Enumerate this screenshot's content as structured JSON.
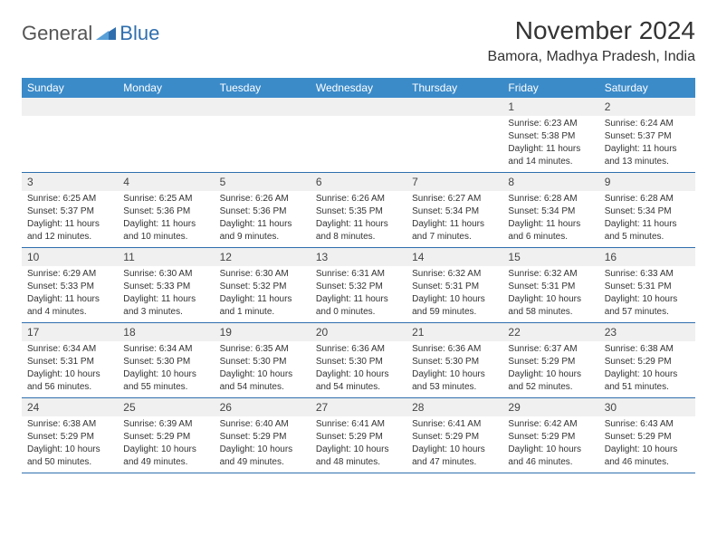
{
  "logo": {
    "part1": "General",
    "part2": "Blue"
  },
  "title": "November 2024",
  "location": "Bamora, Madhya Pradesh, India",
  "colors": {
    "header_bg": "#3b8bc9",
    "header_text": "#ffffff",
    "daynum_bg": "#f0f0f0",
    "row_divider": "#2f6fae",
    "logo_gray": "#555555",
    "logo_blue": "#2f6fae"
  },
  "typography": {
    "title_fontsize": 28,
    "location_fontsize": 16,
    "dayheader_fontsize": 12,
    "daynum_fontsize": 12,
    "detail_fontsize": 10
  },
  "day_headers": [
    "Sunday",
    "Monday",
    "Tuesday",
    "Wednesday",
    "Thursday",
    "Friday",
    "Saturday"
  ],
  "weeks": [
    [
      null,
      null,
      null,
      null,
      null,
      {
        "d": "1",
        "sr": "Sunrise: 6:23 AM",
        "ss": "Sunset: 5:38 PM",
        "dl1": "Daylight: 11 hours",
        "dl2": "and 14 minutes."
      },
      {
        "d": "2",
        "sr": "Sunrise: 6:24 AM",
        "ss": "Sunset: 5:37 PM",
        "dl1": "Daylight: 11 hours",
        "dl2": "and 13 minutes."
      }
    ],
    [
      {
        "d": "3",
        "sr": "Sunrise: 6:25 AM",
        "ss": "Sunset: 5:37 PM",
        "dl1": "Daylight: 11 hours",
        "dl2": "and 12 minutes."
      },
      {
        "d": "4",
        "sr": "Sunrise: 6:25 AM",
        "ss": "Sunset: 5:36 PM",
        "dl1": "Daylight: 11 hours",
        "dl2": "and 10 minutes."
      },
      {
        "d": "5",
        "sr": "Sunrise: 6:26 AM",
        "ss": "Sunset: 5:36 PM",
        "dl1": "Daylight: 11 hours",
        "dl2": "and 9 minutes."
      },
      {
        "d": "6",
        "sr": "Sunrise: 6:26 AM",
        "ss": "Sunset: 5:35 PM",
        "dl1": "Daylight: 11 hours",
        "dl2": "and 8 minutes."
      },
      {
        "d": "7",
        "sr": "Sunrise: 6:27 AM",
        "ss": "Sunset: 5:34 PM",
        "dl1": "Daylight: 11 hours",
        "dl2": "and 7 minutes."
      },
      {
        "d": "8",
        "sr": "Sunrise: 6:28 AM",
        "ss": "Sunset: 5:34 PM",
        "dl1": "Daylight: 11 hours",
        "dl2": "and 6 minutes."
      },
      {
        "d": "9",
        "sr": "Sunrise: 6:28 AM",
        "ss": "Sunset: 5:34 PM",
        "dl1": "Daylight: 11 hours",
        "dl2": "and 5 minutes."
      }
    ],
    [
      {
        "d": "10",
        "sr": "Sunrise: 6:29 AM",
        "ss": "Sunset: 5:33 PM",
        "dl1": "Daylight: 11 hours",
        "dl2": "and 4 minutes."
      },
      {
        "d": "11",
        "sr": "Sunrise: 6:30 AM",
        "ss": "Sunset: 5:33 PM",
        "dl1": "Daylight: 11 hours",
        "dl2": "and 3 minutes."
      },
      {
        "d": "12",
        "sr": "Sunrise: 6:30 AM",
        "ss": "Sunset: 5:32 PM",
        "dl1": "Daylight: 11 hours",
        "dl2": "and 1 minute."
      },
      {
        "d": "13",
        "sr": "Sunrise: 6:31 AM",
        "ss": "Sunset: 5:32 PM",
        "dl1": "Daylight: 11 hours",
        "dl2": "and 0 minutes."
      },
      {
        "d": "14",
        "sr": "Sunrise: 6:32 AM",
        "ss": "Sunset: 5:31 PM",
        "dl1": "Daylight: 10 hours",
        "dl2": "and 59 minutes."
      },
      {
        "d": "15",
        "sr": "Sunrise: 6:32 AM",
        "ss": "Sunset: 5:31 PM",
        "dl1": "Daylight: 10 hours",
        "dl2": "and 58 minutes."
      },
      {
        "d": "16",
        "sr": "Sunrise: 6:33 AM",
        "ss": "Sunset: 5:31 PM",
        "dl1": "Daylight: 10 hours",
        "dl2": "and 57 minutes."
      }
    ],
    [
      {
        "d": "17",
        "sr": "Sunrise: 6:34 AM",
        "ss": "Sunset: 5:31 PM",
        "dl1": "Daylight: 10 hours",
        "dl2": "and 56 minutes."
      },
      {
        "d": "18",
        "sr": "Sunrise: 6:34 AM",
        "ss": "Sunset: 5:30 PM",
        "dl1": "Daylight: 10 hours",
        "dl2": "and 55 minutes."
      },
      {
        "d": "19",
        "sr": "Sunrise: 6:35 AM",
        "ss": "Sunset: 5:30 PM",
        "dl1": "Daylight: 10 hours",
        "dl2": "and 54 minutes."
      },
      {
        "d": "20",
        "sr": "Sunrise: 6:36 AM",
        "ss": "Sunset: 5:30 PM",
        "dl1": "Daylight: 10 hours",
        "dl2": "and 54 minutes."
      },
      {
        "d": "21",
        "sr": "Sunrise: 6:36 AM",
        "ss": "Sunset: 5:30 PM",
        "dl1": "Daylight: 10 hours",
        "dl2": "and 53 minutes."
      },
      {
        "d": "22",
        "sr": "Sunrise: 6:37 AM",
        "ss": "Sunset: 5:29 PM",
        "dl1": "Daylight: 10 hours",
        "dl2": "and 52 minutes."
      },
      {
        "d": "23",
        "sr": "Sunrise: 6:38 AM",
        "ss": "Sunset: 5:29 PM",
        "dl1": "Daylight: 10 hours",
        "dl2": "and 51 minutes."
      }
    ],
    [
      {
        "d": "24",
        "sr": "Sunrise: 6:38 AM",
        "ss": "Sunset: 5:29 PM",
        "dl1": "Daylight: 10 hours",
        "dl2": "and 50 minutes."
      },
      {
        "d": "25",
        "sr": "Sunrise: 6:39 AM",
        "ss": "Sunset: 5:29 PM",
        "dl1": "Daylight: 10 hours",
        "dl2": "and 49 minutes."
      },
      {
        "d": "26",
        "sr": "Sunrise: 6:40 AM",
        "ss": "Sunset: 5:29 PM",
        "dl1": "Daylight: 10 hours",
        "dl2": "and 49 minutes."
      },
      {
        "d": "27",
        "sr": "Sunrise: 6:41 AM",
        "ss": "Sunset: 5:29 PM",
        "dl1": "Daylight: 10 hours",
        "dl2": "and 48 minutes."
      },
      {
        "d": "28",
        "sr": "Sunrise: 6:41 AM",
        "ss": "Sunset: 5:29 PM",
        "dl1": "Daylight: 10 hours",
        "dl2": "and 47 minutes."
      },
      {
        "d": "29",
        "sr": "Sunrise: 6:42 AM",
        "ss": "Sunset: 5:29 PM",
        "dl1": "Daylight: 10 hours",
        "dl2": "and 46 minutes."
      },
      {
        "d": "30",
        "sr": "Sunrise: 6:43 AM",
        "ss": "Sunset: 5:29 PM",
        "dl1": "Daylight: 10 hours",
        "dl2": "and 46 minutes."
      }
    ]
  ]
}
